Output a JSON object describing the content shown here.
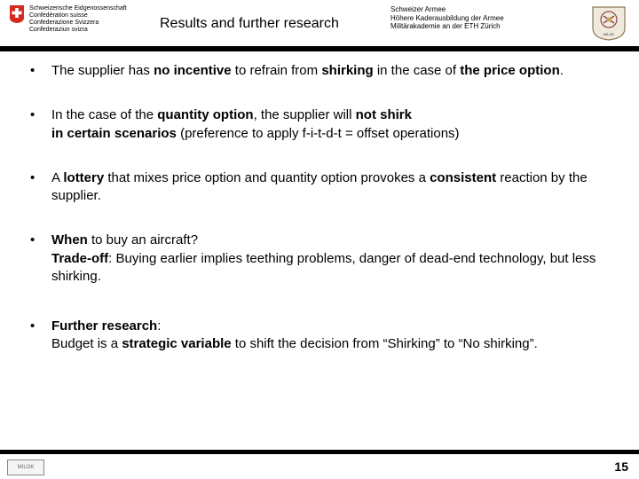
{
  "header": {
    "swiss_lines": [
      "Schweizerische Eidgenossenschaft",
      "Confédération suisse",
      "Confederazione Svizzera",
      "Confederaziun svizra"
    ],
    "title": "Results and further research",
    "org_lines": [
      "Schweizer Armee",
      "Höhere Kaderausbildung der Armee",
      "Militärakademie an der ETH Zürich"
    ]
  },
  "bullets": [
    {
      "segments": [
        {
          "t": "The supplier has ",
          "b": false
        },
        {
          "t": "no incentive",
          "b": true
        },
        {
          "t": " to refrain from ",
          "b": false
        },
        {
          "t": "shirking",
          "b": true
        },
        {
          "t": " in the case of ",
          "b": false
        },
        {
          "t": "the price option",
          "b": true
        },
        {
          "t": ".",
          "b": false
        }
      ]
    },
    {
      "segments": [
        {
          "t": "In the case of the ",
          "b": false
        },
        {
          "t": "quantity option",
          "b": true
        },
        {
          "t": ", the supplier will ",
          "b": false
        },
        {
          "t": "not shirk",
          "b": true
        },
        {
          "t": "\nin certain scenarios",
          "b": true
        },
        {
          "t": " (preference to apply f-i-t-d-t = offset operations)",
          "b": false
        }
      ]
    },
    {
      "segments": [
        {
          "t": "A ",
          "b": false
        },
        {
          "t": "lottery",
          "b": true
        },
        {
          "t": " that mixes price option and quantity option provokes a ",
          "b": false
        },
        {
          "t": "consistent",
          "b": true
        },
        {
          "t": " reaction by the supplier.",
          "b": false
        }
      ]
    },
    {
      "segments": [
        {
          "t": "When",
          "b": true
        },
        {
          "t": " to buy an aircraft?\n",
          "b": false
        },
        {
          "t": "Trade-off",
          "b": true
        },
        {
          "t": ": Buying earlier implies teething problems, danger of dead-end technology, but less shirking.",
          "b": false
        }
      ]
    },
    {
      "segments": [
        {
          "t": "Further research",
          "b": true
        },
        {
          "t": ":\nBudget is a ",
          "b": false
        },
        {
          "t": "strategic variable",
          "b": true
        },
        {
          "t": " to shift the decision from “Shirking” to “No shirking”.",
          "b": false
        }
      ]
    }
  ],
  "footer": {
    "logo_text": "MILOK",
    "page_number": "15"
  },
  "colors": {
    "shield_red": "#d52b1e",
    "bar": "#000000",
    "crest_bg": "#f0e9dd",
    "crest_border": "#8a7a55"
  }
}
